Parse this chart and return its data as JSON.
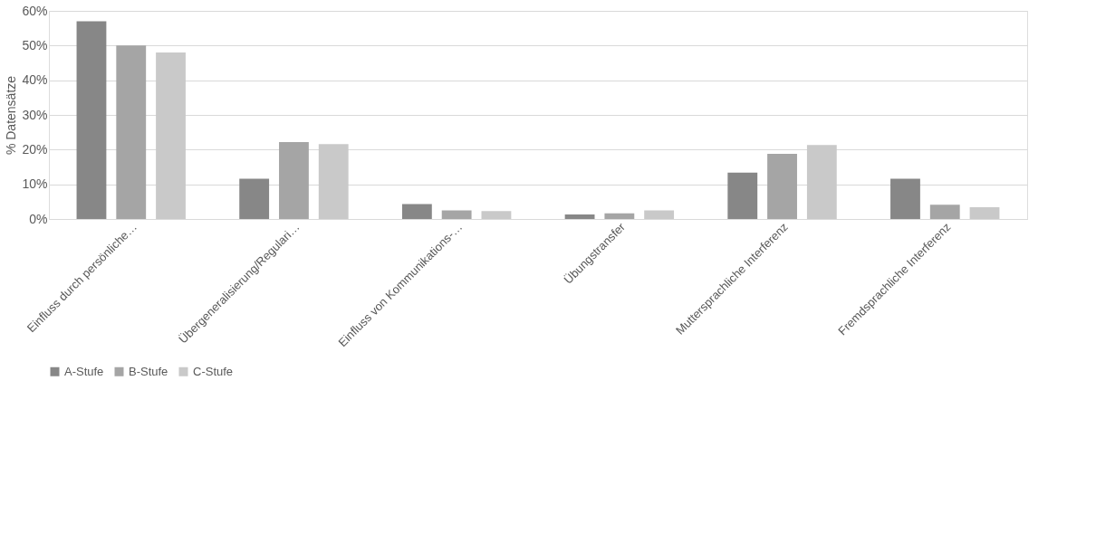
{
  "chart_data": {
    "type": "bar",
    "categories": [
      "Einfluss durch persönliche…",
      "Übergeneralisierung/Regulari…",
      "Einfluss von Kommunikations-…",
      "Übungstransfer",
      "Muttersprachliche Interferenz",
      "Fremdsprachliche Interferenz"
    ],
    "series": [
      {
        "name": "A-Stufe",
        "color": "#878787",
        "values": [
          57,
          11.6,
          4.3,
          1.3,
          13.4,
          11.6
        ]
      },
      {
        "name": "B-Stufe",
        "color": "#a5a5a5",
        "values": [
          50,
          22.2,
          2.5,
          1.6,
          18.8,
          4.1
        ]
      },
      {
        "name": "C-Stufe",
        "color": "#c9c9c9",
        "values": [
          48,
          21.6,
          2.3,
          2.5,
          21.3,
          3.4
        ]
      }
    ],
    "ylabel": "% Datensätze",
    "ylim": [
      0,
      60
    ],
    "yticks": [
      {
        "value": 0,
        "label": "0%"
      },
      {
        "value": 10,
        "label": "10%"
      },
      {
        "value": 20,
        "label": "20%"
      },
      {
        "value": 30,
        "label": "30%"
      },
      {
        "value": 40,
        "label": "40%"
      },
      {
        "value": 50,
        "label": "50%"
      },
      {
        "value": 60,
        "label": "60%"
      }
    ],
    "grid": "y",
    "legend": "bottom"
  }
}
